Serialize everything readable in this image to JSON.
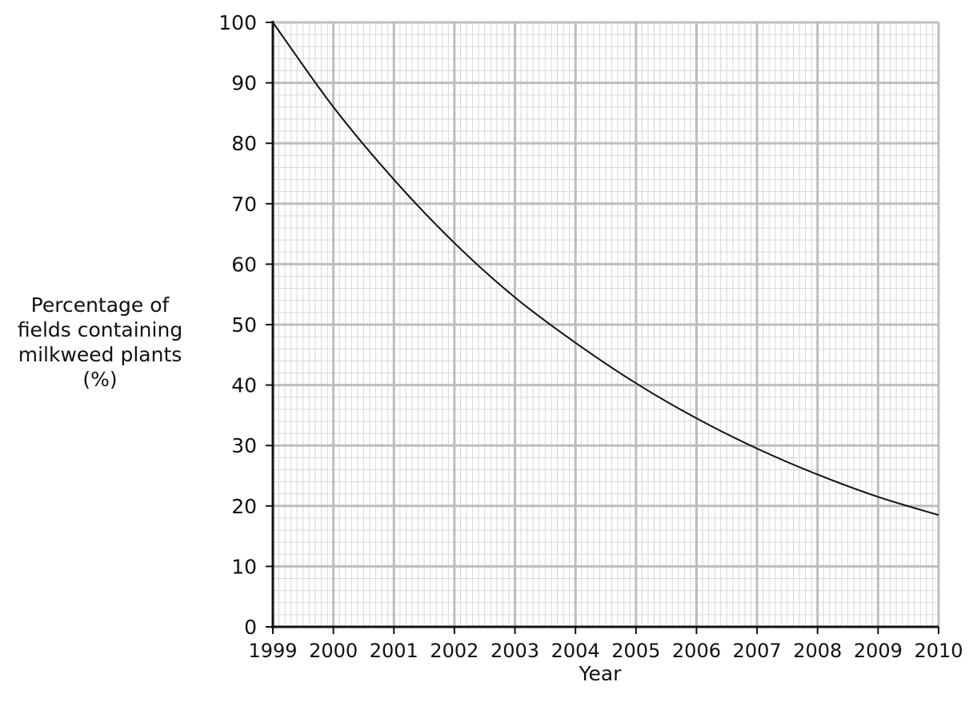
{
  "chart_data": {
    "type": "line",
    "title": "",
    "xlabel": "Year",
    "ylabel_lines": [
      "Percentage of",
      "fields containing",
      "milkweed plants",
      "(%)"
    ],
    "xlim": [
      1999,
      2010
    ],
    "ylim": [
      0,
      100
    ],
    "x_ticks": [
      1999,
      2000,
      2001,
      2002,
      2003,
      2004,
      2005,
      2006,
      2007,
      2008,
      2009,
      2010
    ],
    "y_ticks": [
      0,
      10,
      20,
      30,
      40,
      50,
      60,
      70,
      80,
      90,
      100
    ],
    "x_minor_per_major": 10,
    "y_minor_per_major": 5,
    "grid": true,
    "series": [
      {
        "x": [
          1999,
          2000,
          2001,
          2002,
          2003,
          2004,
          2005,
          2006,
          2007,
          2008,
          2009,
          2010
        ],
        "y": [
          100,
          86,
          74,
          63.5,
          54.5,
          47,
          40.3,
          34.5,
          29.5,
          25.2,
          21.5,
          18.5
        ],
        "color": "#111111"
      }
    ],
    "colors": {
      "major_grid": "#bdbdbd",
      "minor_grid": "#d6d6d6",
      "axis": "#111111"
    }
  }
}
